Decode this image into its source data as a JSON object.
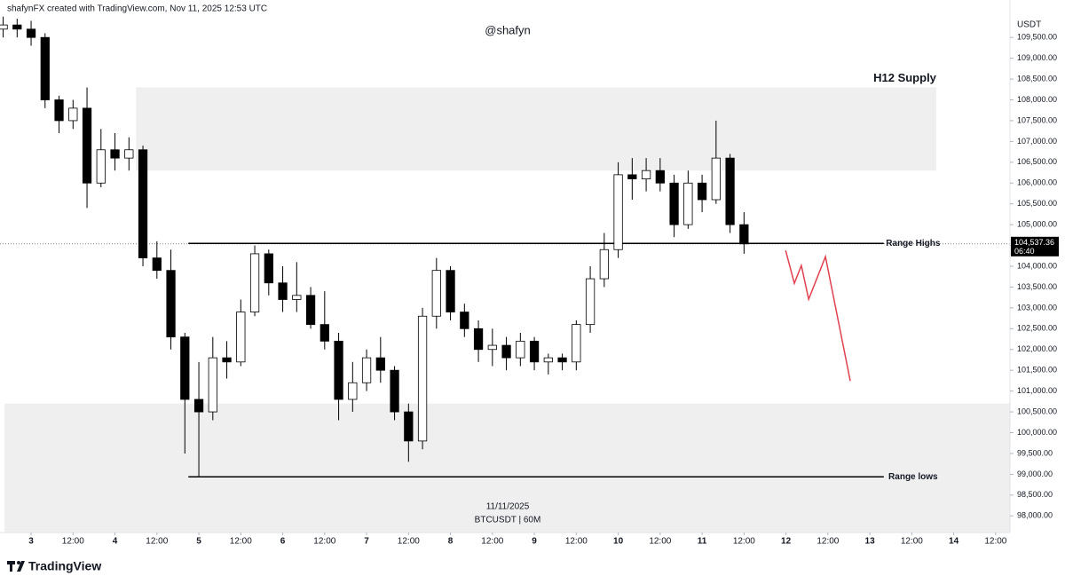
{
  "chart_data": {
    "type": "candlestick",
    "header": "shafynFX created with TradingView.com, Nov 11, 2025 12:53 UTC",
    "watermark": "@shafyn",
    "date_label": "11/11/2025",
    "symbol_label": "BTCUSDT | 60M",
    "brand": "TradingView",
    "y_unit": "USDT",
    "up_color": "#ffffff",
    "down_color": "#000000",
    "wick_color": "#000000",
    "x": [
      -8,
      -4,
      0,
      4,
      8,
      12,
      16,
      20,
      24,
      28,
      32,
      36,
      40,
      44,
      48,
      52,
      56,
      60,
      64,
      68,
      72,
      76,
      80,
      84,
      88,
      92,
      96,
      100,
      104,
      108,
      112,
      116,
      120,
      124,
      128,
      132,
      136,
      140,
      144,
      148,
      152,
      156,
      160,
      164,
      168,
      172,
      176,
      180,
      184,
      188,
      192,
      196,
      200,
      204
    ],
    "open": [
      109700,
      109800,
      109700,
      109500,
      108000,
      107500,
      107800,
      106000,
      106800,
      106600,
      106800,
      104200,
      103900,
      102300,
      100800,
      100500,
      101800,
      101700,
      102900,
      104300,
      103600,
      103200,
      103300,
      102600,
      102200,
      100800,
      101200,
      101800,
      101500,
      100500,
      99800,
      102800,
      103900,
      102900,
      102500,
      102000,
      102100,
      101800,
      102200,
      101700,
      101800,
      101700,
      102600,
      103700,
      104400,
      106200,
      106100,
      106300,
      106000,
      105000,
      106000,
      105600,
      106600,
      105000
    ],
    "high": [
      110000,
      109950,
      109900,
      109600,
      108100,
      108000,
      108300,
      107300,
      107200,
      107100,
      106900,
      104600,
      104400,
      102400,
      101700,
      102300,
      102200,
      103200,
      104500,
      104400,
      104000,
      104100,
      103500,
      103400,
      102400,
      101700,
      102000,
      102300,
      101600,
      100700,
      103000,
      104200,
      104000,
      103100,
      102700,
      102500,
      102300,
      102400,
      102300,
      101900,
      101900,
      102700,
      104000,
      104800,
      106500,
      106600,
      106600,
      106600,
      106200,
      106300,
      106200,
      107500,
      106700,
      105300
    ],
    "low": [
      109500,
      109500,
      109300,
      107800,
      107200,
      107300,
      105400,
      105900,
      106300,
      106300,
      104000,
      103700,
      102000,
      99500,
      98950,
      100300,
      101300,
      101600,
      102800,
      103300,
      102900,
      102900,
      102500,
      102000,
      100300,
      100500,
      101000,
      101200,
      100300,
      99300,
      99600,
      102500,
      102700,
      102300,
      101700,
      101600,
      101500,
      101600,
      101500,
      101400,
      101500,
      101500,
      102400,
      103500,
      104200,
      105600,
      105800,
      105800,
      104700,
      104900,
      105300,
      105500,
      104800,
      104300
    ],
    "close": [
      109800,
      109700,
      109500,
      108000,
      107500,
      107800,
      106000,
      106800,
      106600,
      106800,
      104200,
      103900,
      102300,
      100800,
      100500,
      101800,
      101700,
      102900,
      104300,
      103600,
      103200,
      103300,
      102600,
      102200,
      100800,
      101200,
      101800,
      101500,
      100500,
      99800,
      102800,
      103900,
      102900,
      102500,
      102000,
      102100,
      101800,
      102200,
      101700,
      101800,
      101700,
      102600,
      103700,
      104400,
      106200,
      106100,
      106300,
      106000,
      105000,
      106000,
      105600,
      106600,
      105000,
      104537.36
    ],
    "xlim": [
      -8.9,
      280.1
    ],
    "ylim": [
      97600,
      110400
    ],
    "xticks": [
      {
        "value": 0,
        "label": "3"
      },
      {
        "value": 12,
        "label": "12:00"
      },
      {
        "value": 24,
        "label": "4"
      },
      {
        "value": 36,
        "label": "12:00"
      },
      {
        "value": 48,
        "label": "5"
      },
      {
        "value": 60,
        "label": "12:00"
      },
      {
        "value": 72,
        "label": "6"
      },
      {
        "value": 84,
        "label": "12:00"
      },
      {
        "value": 96,
        "label": "7"
      },
      {
        "value": 108,
        "label": "12:00"
      },
      {
        "value": 120,
        "label": "8"
      },
      {
        "value": 132,
        "label": "12:00"
      },
      {
        "value": 144,
        "label": "9"
      },
      {
        "value": 156,
        "label": "12:00"
      },
      {
        "value": 168,
        "label": "10"
      },
      {
        "value": 180,
        "label": "12:00"
      },
      {
        "value": 192,
        "label": "11"
      },
      {
        "value": 204,
        "label": "12:00"
      },
      {
        "value": 216,
        "label": "12"
      },
      {
        "value": 228,
        "label": "12:00"
      },
      {
        "value": 240,
        "label": "13"
      },
      {
        "value": 252,
        "label": "12:00"
      },
      {
        "value": 264,
        "label": "14"
      },
      {
        "value": 276,
        "label": "12:00"
      }
    ],
    "yticks": [
      {
        "value": 98000,
        "label": "98,000.00"
      },
      {
        "value": 98500,
        "label": "98,500.00"
      },
      {
        "value": 99000,
        "label": "99,000.00"
      },
      {
        "value": 99500,
        "label": "99,500.00"
      },
      {
        "value": 100000,
        "label": "100,000.00"
      },
      {
        "value": 100500,
        "label": "100,500.00"
      },
      {
        "value": 101000,
        "label": "101,000.00"
      },
      {
        "value": 101500,
        "label": "101,500.00"
      },
      {
        "value": 102000,
        "label": "102,000.00"
      },
      {
        "value": 102500,
        "label": "102,500.00"
      },
      {
        "value": 103000,
        "label": "103,000.00"
      },
      {
        "value": 103500,
        "label": "103,500.00"
      },
      {
        "value": 104000,
        "label": "104,000.00"
      },
      {
        "value": 104500,
        "label": "104,500.00"
      },
      {
        "value": 105000,
        "label": "105,000.00"
      },
      {
        "value": 105500,
        "label": "105,500.00"
      },
      {
        "value": 106000,
        "label": "106,000.00"
      },
      {
        "value": 106500,
        "label": "106,500.00"
      },
      {
        "value": 107000,
        "label": "107,000.00"
      },
      {
        "value": 107500,
        "label": "107,500.00"
      },
      {
        "value": 108000,
        "label": "108,000.00"
      },
      {
        "value": 108500,
        "label": "108,500.00"
      },
      {
        "value": 109000,
        "label": "109,000.00"
      },
      {
        "value": 109500,
        "label": "109,500.00"
      }
    ],
    "zones": [
      {
        "label": "H12 Supply",
        "ylim": [
          106300,
          108300
        ],
        "xlim": [
          30,
          259
        ],
        "color": "#efefef"
      },
      {
        "ylim": [
          97600,
          100700
        ],
        "xlim": [
          -7.6,
          280.1
        ],
        "color": "#efefef"
      }
    ],
    "levels": [
      {
        "label": "Range Highs",
        "value": 104550,
        "xlim": [
          45,
          244
        ]
      },
      {
        "label": "Range lows",
        "value": 98940,
        "xlim": [
          45,
          244
        ]
      }
    ],
    "projection": {
      "color": "#e0424f",
      "x": [
        215.9,
        218.4,
        220.4,
        222.5,
        227.3,
        234.4
      ],
      "values": [
        104381,
        103591,
        104018,
        103207,
        104231,
        101244
      ]
    },
    "last_price": {
      "value": 104537.36,
      "label": "104,537.36",
      "countdown": "06:40"
    }
  }
}
